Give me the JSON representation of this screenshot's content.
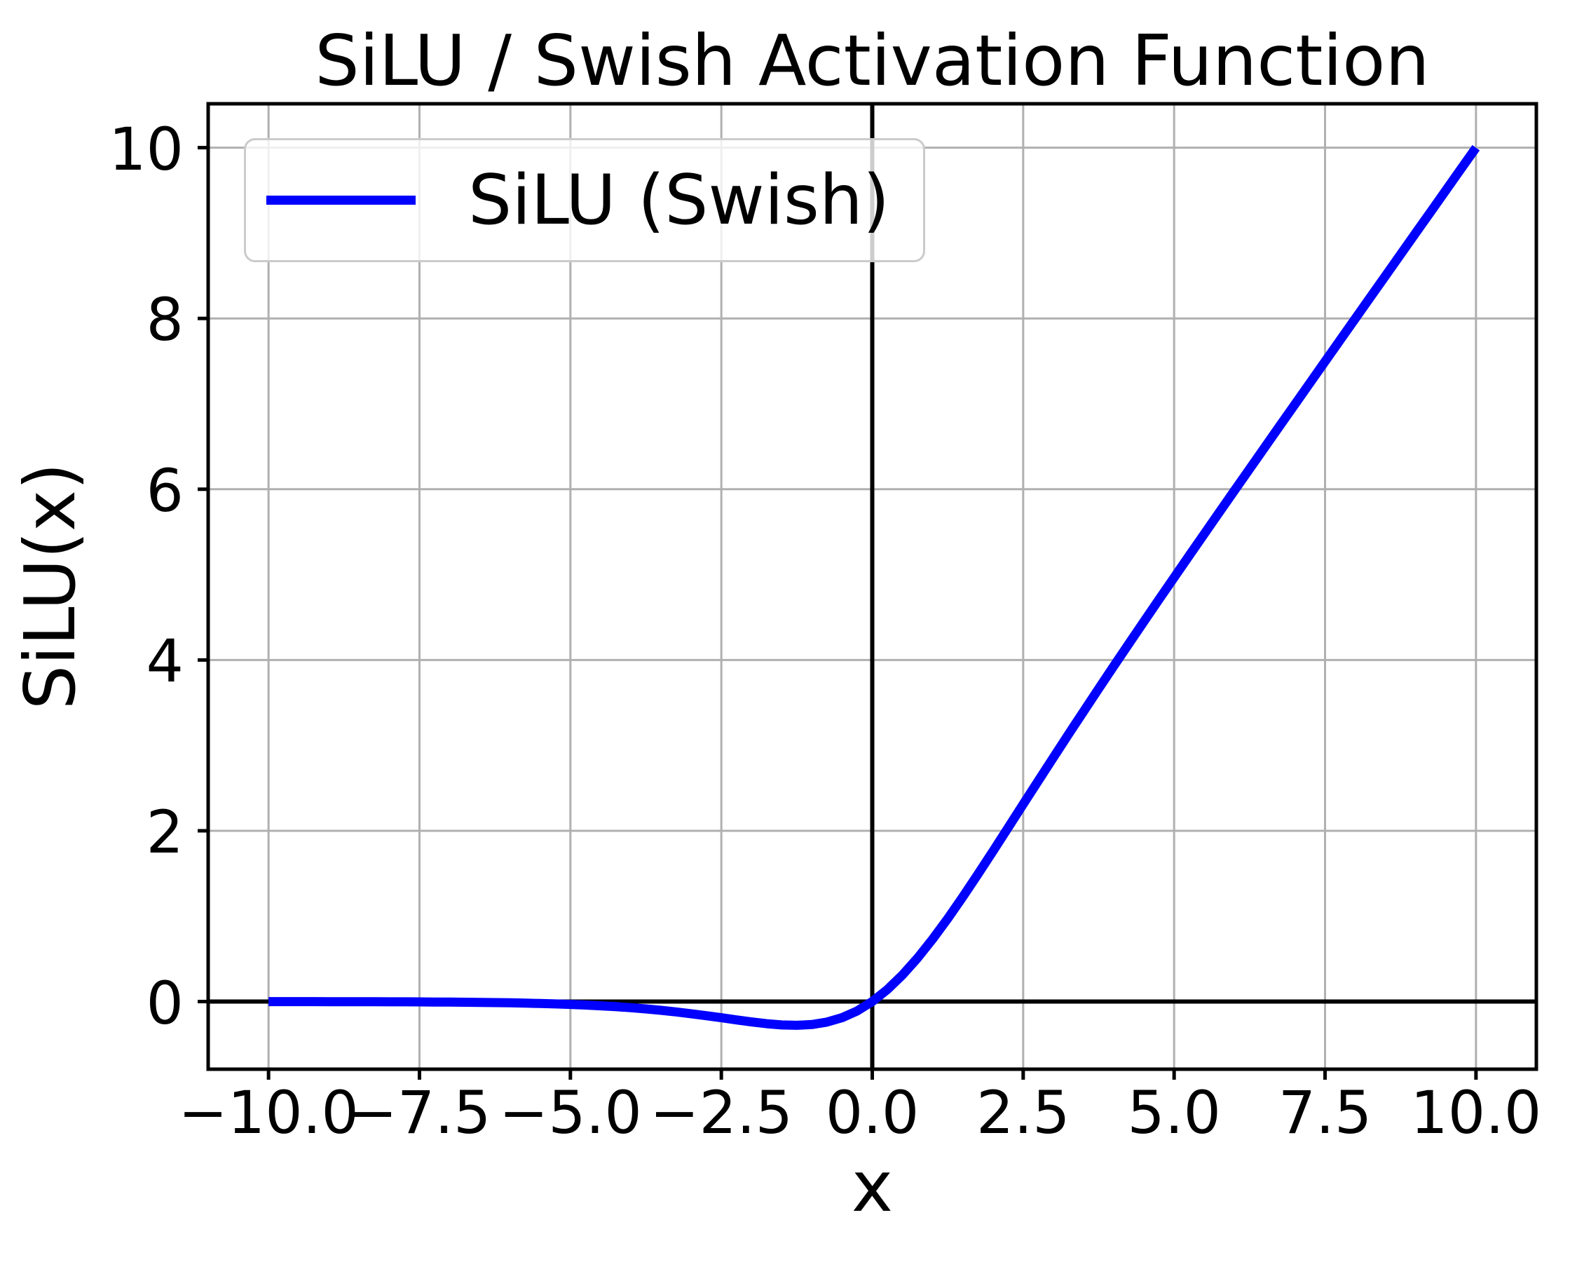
{
  "chart_data": {
    "type": "line",
    "title": "SiLU / Swish Activation Function",
    "xlabel": "x",
    "ylabel": "SiLU(x)",
    "xlim": [
      -11,
      11
    ],
    "ylim": [
      -0.792,
      10.514
    ],
    "grid": true,
    "zero_lines": true,
    "legend_position": "upper left",
    "colors": {
      "line": "#0000ff",
      "grid": "#b0b0b0",
      "axis": "#000000",
      "legend_border": "#cbcbcb",
      "text": "#000000"
    },
    "legend": {
      "entries": [
        {
          "label": "SiLU (Swish)",
          "color": "#0000ff"
        }
      ]
    },
    "x_ticks": {
      "values": [
        -10,
        -7.5,
        -5,
        -2.5,
        0,
        2.5,
        5,
        7.5,
        10
      ],
      "labels": [
        "−10.0",
        "−7.5",
        "−5.0",
        "−2.5",
        "0.0",
        "2.5",
        "5.0",
        "7.5",
        "10.0"
      ]
    },
    "y_ticks": {
      "values": [
        0,
        2,
        4,
        6,
        8,
        10
      ],
      "labels": [
        "0",
        "2",
        "4",
        "6",
        "8",
        "10"
      ]
    },
    "series": [
      {
        "name": "SiLU (Swish)",
        "color": "#0000ff",
        "x": [
          -10,
          -9.75,
          -9.5,
          -9.25,
          -9,
          -8.75,
          -8.5,
          -8.25,
          -8,
          -7.75,
          -7.5,
          -7.25,
          -7,
          -6.75,
          -6.5,
          -6.25,
          -6,
          -5.75,
          -5.5,
          -5.25,
          -5,
          -4.75,
          -4.5,
          -4.25,
          -4,
          -3.75,
          -3.5,
          -3.25,
          -3,
          -2.75,
          -2.5,
          -2.25,
          -2,
          -1.75,
          -1.5,
          -1.25,
          -1,
          -0.75,
          -0.5,
          -0.25,
          0,
          0.25,
          0.5,
          0.75,
          1,
          1.25,
          1.5,
          1.75,
          2,
          2.25,
          2.5,
          2.75,
          3,
          3.25,
          3.5,
          3.75,
          4,
          4.25,
          4.5,
          4.75,
          5,
          5.25,
          5.5,
          5.75,
          6,
          6.25,
          6.5,
          6.75,
          7,
          7.25,
          7.5,
          7.75,
          8,
          8.25,
          8.5,
          8.75,
          9,
          9.25,
          9.5,
          9.75,
          10
        ],
        "y": [
          -0.0005,
          -0.0006,
          -0.0007,
          -0.0009,
          -0.0011,
          -0.0014,
          -0.0017,
          -0.0022,
          -0.0027,
          -0.0033,
          -0.0041,
          -0.0051,
          -0.0064,
          -0.0079,
          -0.0098,
          -0.012,
          -0.0148,
          -0.0182,
          -0.0224,
          -0.0274,
          -0.0335,
          -0.0407,
          -0.0494,
          -0.0598,
          -0.0719,
          -0.0862,
          -0.1026,
          -0.1213,
          -0.1423,
          -0.1652,
          -0.1896,
          -0.2145,
          -0.2384,
          -0.2591,
          -0.2736,
          -0.2784,
          -0.2689,
          -0.2406,
          -0.1888,
          -0.1095,
          0,
          0.1405,
          0.3112,
          0.5094,
          0.7311,
          0.9716,
          1.2264,
          1.4909,
          1.7616,
          2.0355,
          2.3104,
          2.5848,
          2.8577,
          3.1287,
          3.3974,
          3.6638,
          3.9281,
          4.1902,
          4.4506,
          4.7093,
          4.9665,
          5.2226,
          5.4776,
          5.7318,
          5.9852,
          6.238,
          6.4902,
          6.7421,
          6.9936,
          7.2449,
          7.4959,
          7.7467,
          7.9973,
          8.2478,
          8.4983,
          8.7486,
          8.9989,
          9.2491,
          9.4993,
          9.7494,
          9.9995
        ]
      }
    ]
  }
}
